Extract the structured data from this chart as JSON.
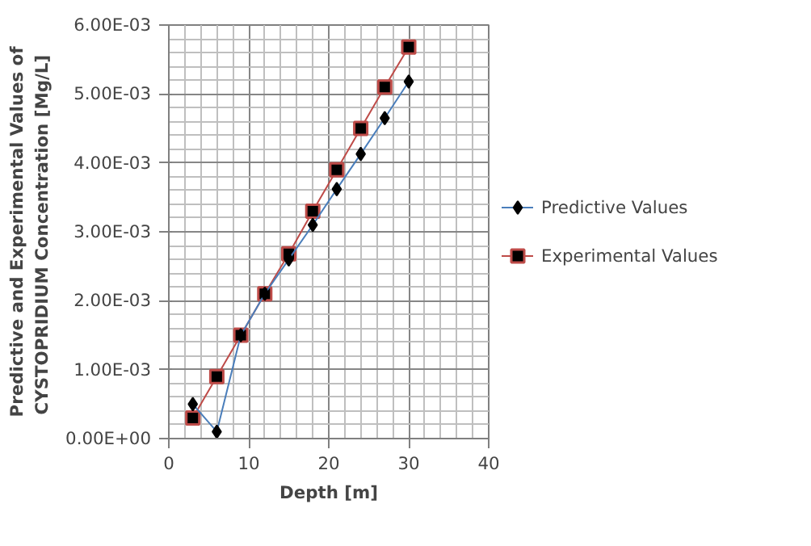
{
  "chart_data": {
    "type": "line",
    "xlabel": "Depth [m]",
    "ylabel": "Predictive and Experimental Values of\nCYSTOPRIDIUM Concentration  [Mg/L]",
    "x": [
      3,
      6,
      9,
      12,
      15,
      18,
      21,
      24,
      27,
      30
    ],
    "series": [
      {
        "name": "Predictive Values",
        "color": "#4a7ebb",
        "marker": "diamond",
        "values": [
          0.0005,
          0.0001,
          0.0015,
          0.0021,
          0.0026,
          0.0031,
          0.00362,
          0.00413,
          0.00465,
          0.00518
        ]
      },
      {
        "name": "Experimental Values",
        "color": "#be4b48",
        "marker": "square",
        "values": [
          0.0003,
          0.0009,
          0.0015,
          0.0021,
          0.00268,
          0.0033,
          0.0039,
          0.0045,
          0.0051,
          0.00568
        ]
      }
    ],
    "xlim": [
      0,
      40
    ],
    "xticks": [
      0,
      10,
      20,
      30,
      40
    ],
    "ylim": [
      0,
      0.006
    ],
    "yticks": [
      {
        "value": 0,
        "label": "0.00E+00"
      },
      {
        "value": 0.001,
        "label": "1.00E-03"
      },
      {
        "value": 0.002,
        "label": "2.00E-03"
      },
      {
        "value": 0.003,
        "label": "3.00E-03"
      },
      {
        "value": 0.004,
        "label": "4.00E-03"
      },
      {
        "value": 0.005,
        "label": "5.00E-03"
      },
      {
        "value": 0.006,
        "label": "6.00E-03"
      }
    ],
    "grid": true,
    "legend": "right"
  }
}
